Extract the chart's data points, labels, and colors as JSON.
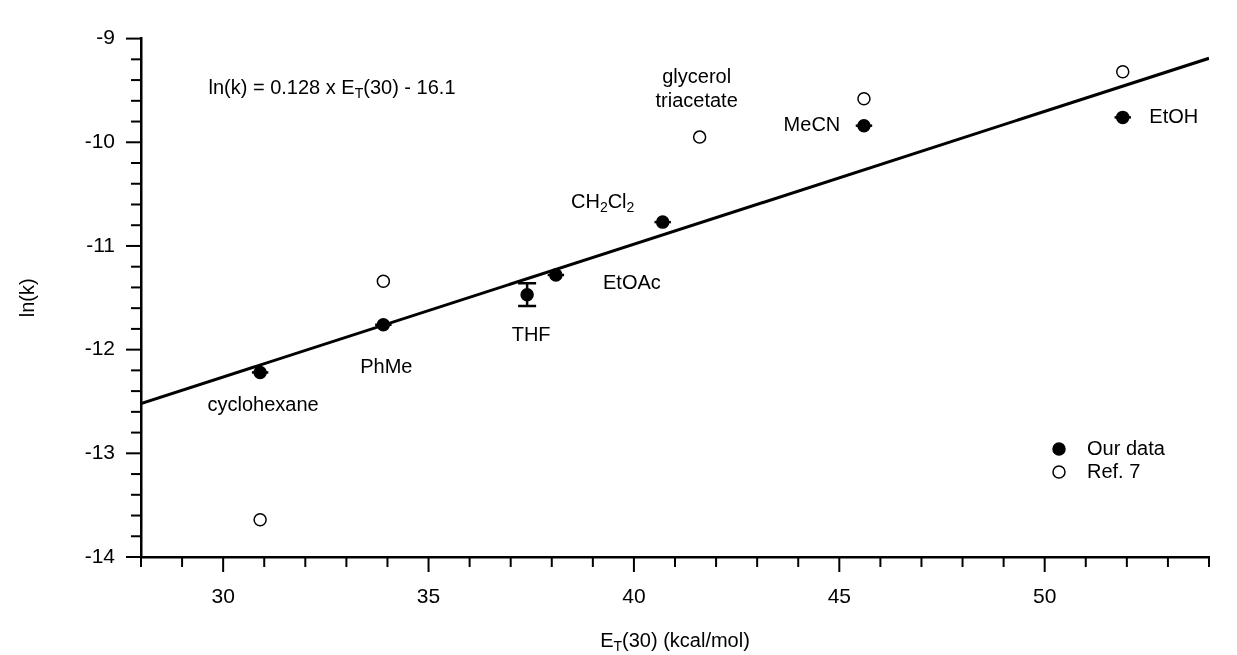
{
  "chart_data": {
    "type": "scatter",
    "xlabel": "E$_{T}$(30) (kcal/mol)",
    "ylabel": "ln(k)",
    "xlim": [
      28,
      54
    ],
    "ylim": [
      -14,
      -9
    ],
    "xticks": [
      {
        "value": 28,
        "label": null
      },
      {
        "value": 29,
        "label": null
      },
      30,
      {
        "value": 31,
        "label": null
      },
      {
        "value": 32,
        "label": null
      },
      {
        "value": 33,
        "label": null
      },
      {
        "value": 34,
        "label": null
      },
      35,
      {
        "value": 36,
        "label": null
      },
      {
        "value": 37,
        "label": null
      },
      {
        "value": 38,
        "label": null
      },
      {
        "value": 39,
        "label": null
      },
      40,
      {
        "value": 41,
        "label": null
      },
      {
        "value": 42,
        "label": null
      },
      {
        "value": 43,
        "label": null
      },
      {
        "value": 44,
        "label": null
      },
      45,
      {
        "value": 46,
        "label": null
      },
      {
        "value": 47,
        "label": null
      },
      {
        "value": 48,
        "label": null
      },
      {
        "value": 49,
        "label": null
      },
      50,
      {
        "value": 51,
        "label": null
      },
      {
        "value": 52,
        "label": null
      },
      {
        "value": 53,
        "label": null
      },
      {
        "value": 54,
        "label": null
      }
    ],
    "yticks": [
      -14,
      {
        "value": -13.8,
        "label": null
      },
      {
        "value": -13.6,
        "label": null
      },
      {
        "value": -13.4,
        "label": null
      },
      {
        "value": -13.2,
        "label": null
      },
      -13,
      {
        "value": -12.8,
        "label": null
      },
      {
        "value": -12.6,
        "label": null
      },
      {
        "value": -12.4,
        "label": null
      },
      {
        "value": -12.2,
        "label": null
      },
      -12,
      {
        "value": -11.8,
        "label": null
      },
      {
        "value": -11.6,
        "label": null
      },
      {
        "value": -11.4,
        "label": null
      },
      {
        "value": -11.2,
        "label": null
      },
      -11,
      {
        "value": -10.8,
        "label": null
      },
      {
        "value": -10.6,
        "label": null
      },
      {
        "value": -10.4,
        "label": null
      },
      {
        "value": -10.2,
        "label": null
      },
      -10,
      {
        "value": -9.8,
        "label": null
      },
      {
        "value": -9.6,
        "label": null
      },
      {
        "value": -9.4,
        "label": null
      },
      {
        "value": -9.2,
        "label": null
      },
      -9
    ],
    "grid": false,
    "legend": "bottom right",
    "series": [
      {
        "name": "Our data",
        "marker": "circle",
        "color": "#000000",
        "x": [
          30.9,
          33.9,
          37.4,
          38.1,
          40.7,
          45.6,
          51.9
        ],
        "values": [
          -12.22,
          -11.76,
          -11.47,
          -11.28,
          -10.77,
          -9.84,
          -9.76
        ],
        "errors": [
          null,
          null,
          0.11,
          null,
          null,
          null,
          null
        ],
        "xerrors": [
          0.2,
          0.2,
          null,
          0.2,
          0.2,
          0.2,
          0.2
        ]
      },
      {
        "name": "Ref. 7",
        "marker": "circle",
        "color": "#ffffff",
        "x": [
          30.9,
          33.9,
          41.6,
          45.6,
          51.9
        ],
        "values": [
          -13.64,
          -11.34,
          -9.95,
          -9.58,
          -9.32
        ]
      },
      {
        "type": "line",
        "color": "#000000",
        "x": [
          28,
          54
        ],
        "values": [
          -12.52,
          -9.19
        ]
      }
    ],
    "annotations": [
      "ln(k) = 0.128 x E$_{T}$(30) - 16.1",
      {
        "text": "cyclohexane",
        "x": 30.9,
        "y": -12.22
      },
      {
        "text": "PhMe",
        "x": 33.9,
        "y": -11.76
      },
      {
        "text": "THF",
        "x": 37.4,
        "y": -11.47
      },
      {
        "text": "EtOAc",
        "x": 38.1,
        "y": -11.28
      },
      {
        "text": "CH$_{2}$Cl$_{2}$",
        "x": 40.7,
        "y": -10.77
      },
      {
        "text": "glycerol\ntriacetate",
        "x": 41.6,
        "y": -9.95
      },
      {
        "text": "MeCN",
        "x": 45.6,
        "y": -9.84
      },
      {
        "text": "EtOH",
        "x": 51.9,
        "y": -9.76
      }
    ]
  }
}
